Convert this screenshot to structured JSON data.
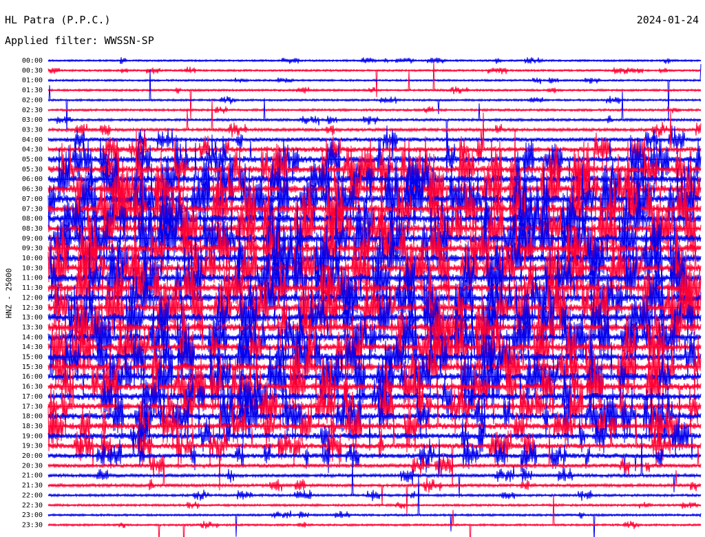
{
  "header": {
    "station": "HL Patra (P.P.C.)",
    "date": "2024-01-24",
    "filter": "Applied filter: WWSSN-SP"
  },
  "colors": {
    "even_row": "#0000ee",
    "odd_row": "#ff0033",
    "background": "#ffffff"
  },
  "chart_data": {
    "type": "line",
    "title": "HL Patra (P.P.C.)",
    "ylabel": "HNZ - 25000",
    "xlabel": "",
    "grid": false,
    "legend": "none",
    "row_interval_minutes": 30,
    "row_colors_alternate": [
      "blue",
      "red"
    ],
    "rows": [
      {
        "label": "00:00",
        "level": 0.05
      },
      {
        "label": "00:30",
        "level": 0.06
      },
      {
        "label": "01:00",
        "level": 0.06
      },
      {
        "label": "01:30",
        "level": 0.08
      },
      {
        "label": "02:00",
        "level": 0.08
      },
      {
        "label": "02:30",
        "level": 0.12
      },
      {
        "label": "03:00",
        "level": 0.15
      },
      {
        "label": "03:30",
        "level": 0.25
      },
      {
        "label": "04:00",
        "level": 0.45
      },
      {
        "label": "04:30",
        "level": 0.6
      },
      {
        "label": "05:00",
        "level": 0.8
      },
      {
        "label": "05:30",
        "level": 0.9
      },
      {
        "label": "06:00",
        "level": 0.95
      },
      {
        "label": "06:30",
        "level": 1.0
      },
      {
        "label": "07:00",
        "level": 1.0
      },
      {
        "label": "07:30",
        "level": 1.0
      },
      {
        "label": "08:00",
        "level": 1.0
      },
      {
        "label": "08:30",
        "level": 1.0
      },
      {
        "label": "09:00",
        "level": 1.0
      },
      {
        "label": "09:30",
        "level": 1.0
      },
      {
        "label": "10:00",
        "level": 1.0
      },
      {
        "label": "10:30",
        "level": 1.0
      },
      {
        "label": "11:00",
        "level": 1.0
      },
      {
        "label": "11:30",
        "level": 1.0
      },
      {
        "label": "12:00",
        "level": 1.0
      },
      {
        "label": "12:30",
        "level": 1.0
      },
      {
        "label": "13:00",
        "level": 1.0
      },
      {
        "label": "13:30",
        "level": 1.0
      },
      {
        "label": "14:00",
        "level": 0.95
      },
      {
        "label": "14:30",
        "level": 0.95
      },
      {
        "label": "15:00",
        "level": 0.95
      },
      {
        "label": "15:30",
        "level": 0.95
      },
      {
        "label": "16:00",
        "level": 0.95
      },
      {
        "label": "16:30",
        "level": 0.9
      },
      {
        "label": "17:00",
        "level": 0.9
      },
      {
        "label": "17:30",
        "level": 0.85
      },
      {
        "label": "18:00",
        "level": 0.85
      },
      {
        "label": "18:30",
        "level": 0.8
      },
      {
        "label": "19:00",
        "level": 0.75
      },
      {
        "label": "19:30",
        "level": 0.65
      },
      {
        "label": "20:00",
        "level": 0.55
      },
      {
        "label": "20:30",
        "level": 0.4
      },
      {
        "label": "21:00",
        "level": 0.3
      },
      {
        "label": "21:30",
        "level": 0.25
      },
      {
        "label": "22:00",
        "level": 0.15
      },
      {
        "label": "22:30",
        "level": 0.12
      },
      {
        "label": "23:00",
        "level": 0.1
      },
      {
        "label": "23:30",
        "level": 0.08
      }
    ]
  }
}
